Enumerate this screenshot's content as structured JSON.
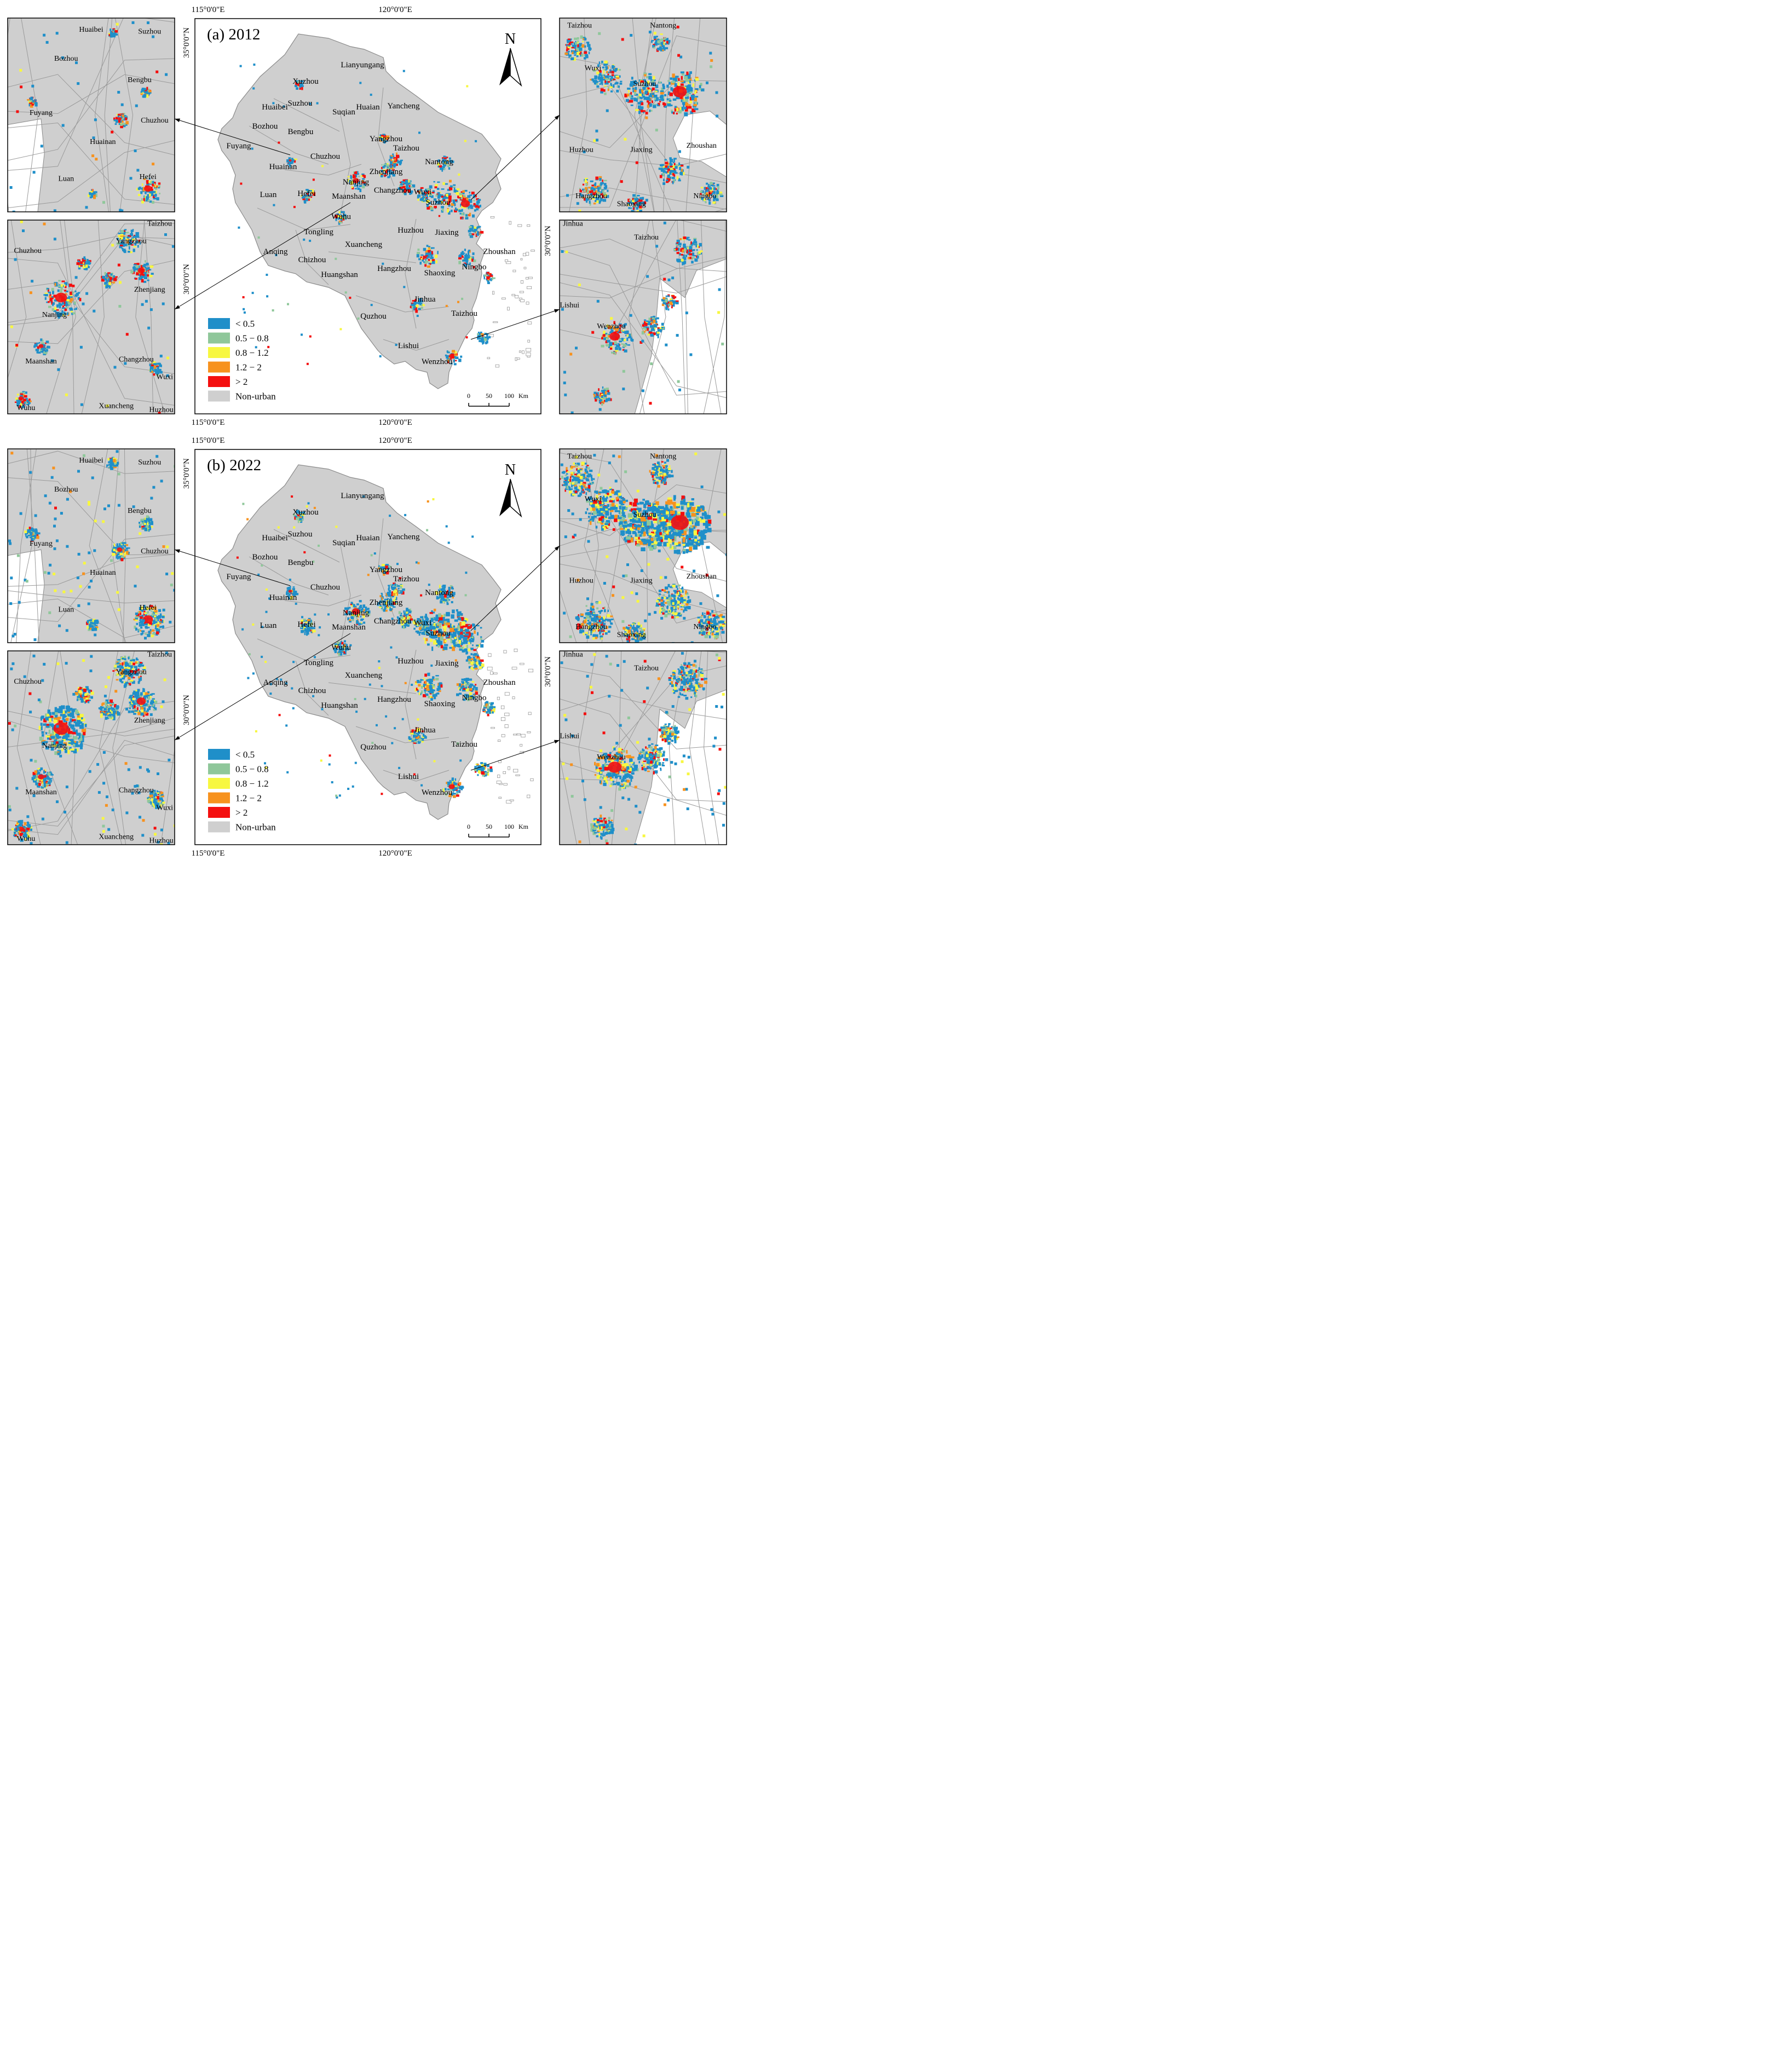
{
  "colors": {
    "lt05": "#1f8fc9",
    "r05_08": "#8fc79a",
    "r08_12": "#f7f740",
    "r12_2": "#f7921e",
    "gt2": "#f40f0f",
    "nonurban": "#cfcfcf",
    "boundary": "#8a8a8a",
    "frame": "#000000"
  },
  "north_label": "N",
  "coords": {
    "lon115": "115°0'0\"E",
    "lon120": "120°0'0\"E",
    "lat35": "35°0'0\"N",
    "lat30": "30°0'0\"N"
  },
  "legend": [
    {
      "label": "< 0.5",
      "color_key": "lt05"
    },
    {
      "label": "0.5 − 0.8",
      "color_key": "r05_08"
    },
    {
      "label": "0.8 − 1.2",
      "color_key": "r08_12"
    },
    {
      "label": "1.2 − 2",
      "color_key": "r12_2"
    },
    {
      "label": "> 2",
      "color_key": "gt2"
    },
    {
      "label": "Non-urban",
      "color_key": "nonurban"
    }
  ],
  "scale": {
    "t0": "0",
    "t50": "50",
    "t100": "100",
    "unit": "Km"
  },
  "panels": [
    {
      "title": "(a) 2012",
      "year": 2012
    },
    {
      "title": "(b) 2022",
      "year": 2022
    }
  ],
  "main_cities": [
    "Lianyungang",
    "Xuzhou",
    "Suzhou",
    "Suqian",
    "Huaian",
    "Yancheng",
    "Huaibei",
    "Bozhou",
    "Bengbu",
    "Fuyang",
    "Yangzhou",
    "Taizhou",
    "Chuzhou",
    "Nantong",
    "Huainan",
    "Zhenjiang",
    "Nanjing",
    "Changzhou",
    "Wuxi",
    "Luan",
    "Hefei",
    "Maanshan",
    "Suzhou",
    "Wuhu",
    "Tongling",
    "Huzhou",
    "Jiaxing",
    "Xuancheng",
    "Anqing",
    "Chizhou",
    "Zhoushan",
    "Hangzhou",
    "Shaoxing",
    "Ningbo",
    "Huangshan",
    "Jinhua",
    "Quzhou",
    "Taizhou",
    "Lishui",
    "Wenzhou"
  ],
  "inset_nw_cities": [
    "Huaibei",
    "Suzhou",
    "Bozhou",
    "Bengbu",
    "Fuyang",
    "Chuzhou",
    "Huainan",
    "Luan",
    "Hefei"
  ],
  "inset_sw_cities": [
    "Taizhou",
    "Yangzhou",
    "Chuzhou",
    "Zhenjiang",
    "Nanjing",
    "Maanshan",
    "Changzhou",
    "Wuxi",
    "Wuhu",
    "Xuancheng",
    "Huzhou"
  ],
  "inset_ne_cities": [
    "Taizhou",
    "Nantong",
    "Wuxi",
    "Suzhou",
    "Huzhou",
    "Jiaxing",
    "Zhoushan",
    "Hangzhou",
    "Shaoxing",
    "Ningbo"
  ],
  "inset_se_cities": [
    "Jinhua",
    "Taizhou",
    "Lishui",
    "Wenzhou"
  ]
}
